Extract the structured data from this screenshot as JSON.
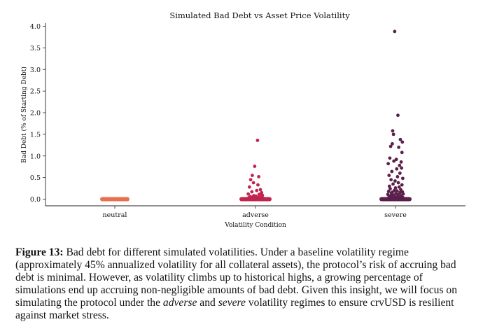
{
  "chart_data": {
    "type": "scatter",
    "title": "Simulated Bad Debt vs Asset Price Volatility",
    "xlabel": "Volatility Condition",
    "ylabel": "Bad Debt (% of Starting Debt)",
    "categories": [
      "neutral",
      "adverse",
      "severe"
    ],
    "ylim": [
      -0.12,
      4.1
    ],
    "yticks": [
      "0.0",
      "0.5",
      "1.0",
      "1.5",
      "2.0",
      "2.5",
      "3.0",
      "3.5",
      "4.0"
    ],
    "ytick_values": [
      0,
      0.5,
      1.0,
      1.5,
      2.0,
      2.5,
      3.0,
      3.5,
      4.0
    ],
    "grid": false,
    "series": [
      {
        "category": "neutral",
        "color": "#e8704f",
        "points": [
          [
            -0.18,
            0.0
          ],
          [
            -0.14,
            0.0
          ],
          [
            -0.1,
            0.0
          ],
          [
            -0.06,
            0.0
          ],
          [
            -0.02,
            0.0
          ],
          [
            0.02,
            0.0
          ],
          [
            0.06,
            0.0
          ],
          [
            0.1,
            0.0
          ],
          [
            0.14,
            0.0
          ],
          [
            0.18,
            0.0
          ]
        ]
      },
      {
        "category": "adverse",
        "color": "#c0254f",
        "points": [
          [
            0.05,
            1.36
          ],
          [
            -0.02,
            0.76
          ],
          [
            -0.08,
            0.55
          ],
          [
            0.08,
            0.52
          ],
          [
            -0.12,
            0.45
          ],
          [
            -0.05,
            0.38
          ],
          [
            0.06,
            0.33
          ],
          [
            -0.15,
            0.28
          ],
          [
            0.12,
            0.22
          ],
          [
            0.03,
            0.2
          ],
          [
            -0.09,
            0.17
          ],
          [
            0.15,
            0.15
          ],
          [
            -0.18,
            0.12
          ],
          [
            0.09,
            0.11
          ],
          [
            0.17,
            0.09
          ],
          [
            -0.04,
            0.08
          ],
          [
            0.01,
            0.07
          ],
          [
            -0.13,
            0.06
          ],
          [
            0.13,
            0.05
          ],
          [
            -0.07,
            0.05
          ],
          [
            0.06,
            0.04
          ],
          [
            -0.17,
            0.03
          ],
          [
            0.18,
            0.03
          ],
          [
            -0.1,
            0.02
          ],
          [
            0.1,
            0.02
          ],
          [
            -0.01,
            0.02
          ],
          [
            0.04,
            0.01
          ],
          [
            -0.15,
            0.01
          ],
          [
            0.15,
            0.01
          ],
          [
            -0.05,
            0.0
          ],
          [
            0.07,
            0.0
          ],
          [
            -0.19,
            0.0
          ],
          [
            0.19,
            0.0
          ],
          [
            0.0,
            0.0
          ],
          [
            -0.11,
            0.0
          ],
          [
            0.12,
            0.0
          ]
        ]
      },
      {
        "category": "severe",
        "color": "#5b1f4b",
        "points": [
          [
            -0.02,
            3.88
          ],
          [
            0.06,
            1.94
          ],
          [
            -0.07,
            1.58
          ],
          [
            -0.05,
            1.5
          ],
          [
            0.12,
            1.38
          ],
          [
            0.17,
            1.32
          ],
          [
            -0.08,
            1.28
          ],
          [
            -0.12,
            1.22
          ],
          [
            0.08,
            1.2
          ],
          [
            0.16,
            1.08
          ],
          [
            -0.14,
            0.95
          ],
          [
            0.02,
            0.92
          ],
          [
            -0.04,
            0.88
          ],
          [
            0.14,
            0.86
          ],
          [
            -0.18,
            0.82
          ],
          [
            0.1,
            0.78
          ],
          [
            0.15,
            0.72
          ],
          [
            0.03,
            0.7
          ],
          [
            -0.09,
            0.64
          ],
          [
            0.11,
            0.6
          ],
          [
            -0.16,
            0.55
          ],
          [
            0.05,
            0.52
          ],
          [
            0.18,
            0.48
          ],
          [
            -0.11,
            0.45
          ],
          [
            -0.01,
            0.42
          ],
          [
            0.07,
            0.38
          ],
          [
            -0.06,
            0.35
          ],
          [
            0.16,
            0.33
          ],
          [
            -0.15,
            0.3
          ],
          [
            0.09,
            0.28
          ],
          [
            0.0,
            0.26
          ],
          [
            -0.13,
            0.24
          ],
          [
            0.13,
            0.22
          ],
          [
            -0.03,
            0.2
          ],
          [
            0.04,
            0.19
          ],
          [
            -0.17,
            0.18
          ],
          [
            0.17,
            0.17
          ],
          [
            -0.08,
            0.16
          ],
          [
            0.11,
            0.15
          ],
          [
            -0.1,
            0.14
          ],
          [
            0.01,
            0.13
          ],
          [
            0.19,
            0.12
          ],
          [
            -0.19,
            0.11
          ],
          [
            0.06,
            0.1
          ],
          [
            -0.05,
            0.09
          ],
          [
            0.14,
            0.08
          ],
          [
            -0.12,
            0.08
          ],
          [
            0.08,
            0.07
          ],
          [
            -0.02,
            0.06
          ],
          [
            0.12,
            0.05
          ],
          [
            -0.16,
            0.05
          ],
          [
            0.03,
            0.04
          ],
          [
            0.18,
            0.04
          ],
          [
            -0.07,
            0.03
          ],
          [
            -0.14,
            0.02
          ],
          [
            0.15,
            0.02
          ],
          [
            0.0,
            0.01
          ],
          [
            -0.09,
            0.01
          ],
          [
            0.1,
            0.0
          ],
          [
            -0.18,
            0.0
          ],
          [
            0.05,
            0.0
          ],
          [
            -0.04,
            0.0
          ],
          [
            0.19,
            0.0
          ]
        ]
      }
    ]
  },
  "caption": {
    "label": "Figure 13:",
    "text_1": " Bad debt for different simulated volatilities. Under a baseline volatility regime (approximately 45% annualized volatility for all collateral assets), the protocol’s risk of accruing bad debt is minimal. However, as volatility climbs up to historical highs, a growing percentage of simulations end up accruing non-negligible amounts of bad debt. Given this insight, we will focus on simulating the protocol under the ",
    "em_1": "adverse",
    "text_2": " and ",
    "em_2": "severe",
    "text_3": " volatility regimes to ensure crvUSD is resilient against market stress."
  }
}
